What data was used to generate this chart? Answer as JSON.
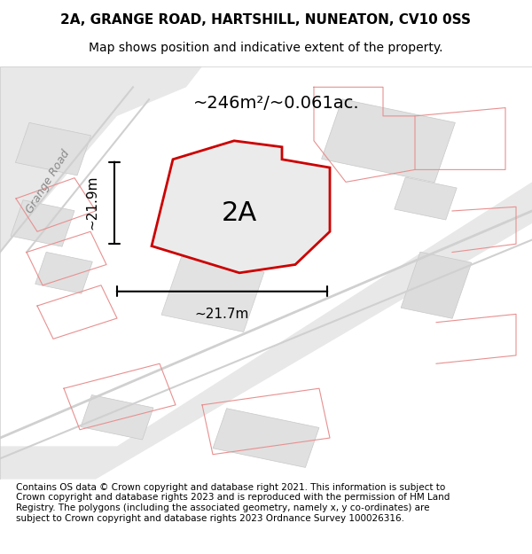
{
  "title_line1": "2A, GRANGE ROAD, HARTSHILL, NUNEATON, CV10 0SS",
  "title_line2": "Map shows position and indicative extent of the property.",
  "footer_text": "Contains OS data © Crown copyright and database right 2021. This information is subject to Crown copyright and database rights 2023 and is reproduced with the permission of HM Land Registry. The polygons (including the associated geometry, namely x, y co-ordinates) are subject to Crown copyright and database rights 2023 Ordnance Survey 100026316.",
  "area_label": "~246m²/~0.061ac.",
  "width_label": "~21.7m",
  "height_label": "~21.9m",
  "plot_label": "2A",
  "bg_color": "#f5f5f5",
  "map_bg": "#f0f0f0",
  "road_color": "#e8e8e8",
  "plot_fill": "#e8e8e8",
  "plot_edge_color": "#cc0000",
  "other_buildings_color": "#e0e0e0",
  "road_line_color": "#e8b0b0",
  "grange_road_label": "Grange Road",
  "title_fontsize": 11,
  "subtitle_fontsize": 10,
  "label_fontsize": 14,
  "footer_fontsize": 7.5
}
